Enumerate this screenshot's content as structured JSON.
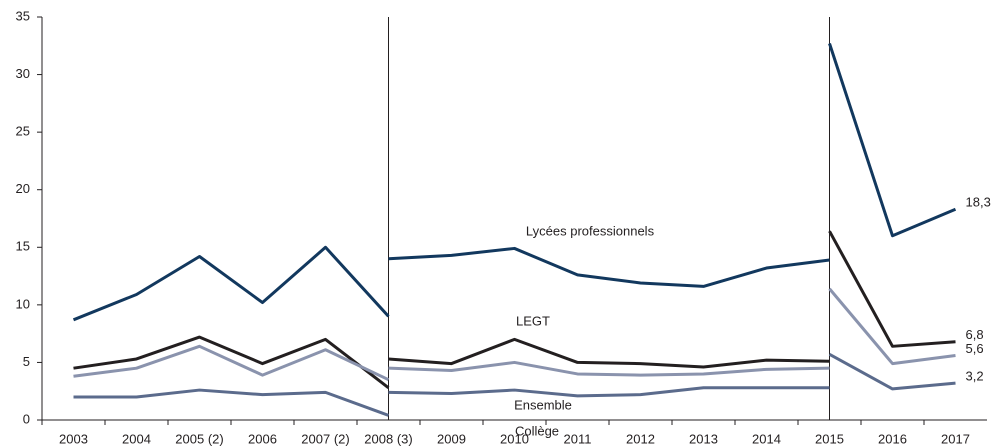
{
  "chart_data": {
    "type": "line",
    "categories": [
      "2003",
      "2004",
      "2005 (2)",
      "2006",
      "2007 (2)",
      "2008 (3)",
      "2009",
      "2010",
      "2011",
      "2012",
      "2013",
      "2014",
      "2015",
      "2016",
      "2017"
    ],
    "ylim": [
      0,
      35
    ],
    "yticks": [
      0,
      5,
      10,
      15,
      20,
      25,
      30,
      35
    ],
    "series": [
      {
        "name": "Lycées professionnels",
        "color": "#12385e",
        "values": [
          [
            8.7,
            10.9,
            14.2,
            10.2,
            15.0,
            9.0
          ],
          [
            14.0,
            14.3,
            14.9,
            12.6,
            11.9,
            11.6,
            13.2,
            13.9
          ],
          [
            32.7,
            16.0,
            18.3
          ]
        ],
        "end_label": "18,3"
      },
      {
        "name": "LEGT",
        "color": "#231f20",
        "values": [
          [
            4.5,
            5.3,
            7.2,
            4.9,
            7.0,
            2.8
          ],
          [
            5.3,
            4.9,
            7.0,
            5.0,
            4.9,
            4.6,
            5.2,
            5.1
          ],
          [
            16.4,
            6.4,
            6.8
          ]
        ],
        "end_label": "6,8"
      },
      {
        "name": "Ensemble",
        "color": "#8a93ad",
        "values": [
          [
            3.8,
            4.5,
            6.4,
            3.9,
            6.1,
            3.5
          ],
          [
            4.5,
            4.3,
            5.0,
            4.0,
            3.9,
            4.0,
            4.4,
            4.5
          ],
          [
            11.4,
            4.9,
            5.6
          ]
        ],
        "end_label": "5,6"
      },
      {
        "name": "Collège",
        "color": "#5b6b8c",
        "values": [
          [
            2.0,
            2.0,
            2.6,
            2.2,
            2.4,
            0.4
          ],
          [
            2.4,
            2.3,
            2.6,
            2.1,
            2.2,
            2.8,
            2.8,
            2.8
          ],
          [
            5.7,
            2.7,
            3.2
          ]
        ],
        "end_label": "3,2"
      }
    ]
  }
}
